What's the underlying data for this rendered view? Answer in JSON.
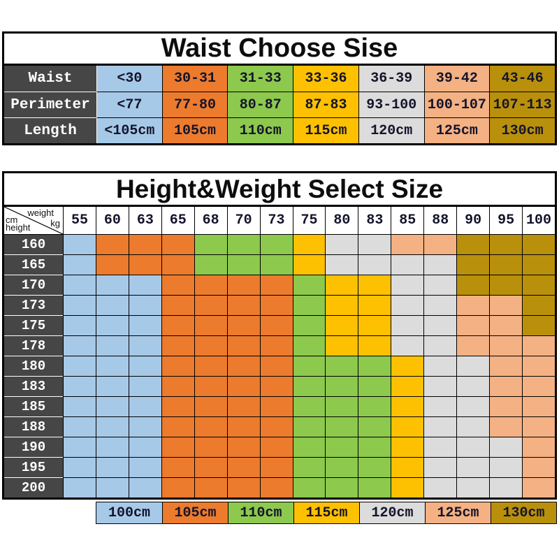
{
  "colors": {
    "blue": "#A7C9E8",
    "orange": "#EC7B2E",
    "green": "#8DC94D",
    "yellow": "#FDC101",
    "gray": "#DCDCDC",
    "peach": "#F4B183",
    "olive": "#B9900B",
    "header_dark": "#464646",
    "border": "#000000"
  },
  "size_color_map": {
    "100cm": "blue",
    "105cm": "orange",
    "110cm": "green",
    "115cm": "yellow",
    "120cm": "gray",
    "125cm": "peach",
    "130cm": "olive"
  },
  "waist_table": {
    "title": "Waist Choose Sise"
  },
  "size_matrix": {
    "title": "Height&Weight Select Size",
    "corner": {
      "cm": "cm",
      "weight": "weight",
      "height": "height",
      "kg": "kg"
    }
  },
  "legend": {
    "items": [
      "100cm",
      "105cm",
      "110cm",
      "115cm",
      "120cm",
      "125cm",
      "130cm"
    ]
  },
  "chart_data": [
    {
      "type": "table",
      "title": "Waist Choose Sise",
      "row_labels": [
        "Waist",
        "Perimeter",
        "Length"
      ],
      "rows": [
        [
          "<30",
          "30-31",
          "31-33",
          "33-36",
          "36-39",
          "39-42",
          "43-46"
        ],
        [
          "<77",
          "77-80",
          "80-87",
          "87-83",
          "93-100",
          "100-107",
          "107-113"
        ],
        [
          "<105cm",
          "105cm",
          "110cm",
          "115cm",
          "120cm",
          "125cm",
          "130cm"
        ]
      ],
      "column_sizes": [
        "100cm",
        "105cm",
        "110cm",
        "115cm",
        "120cm",
        "125cm",
        "130cm"
      ]
    },
    {
      "type": "heatmap",
      "title": "Height&Weight Select Size",
      "xlabel": "weight kg",
      "ylabel": "height cm",
      "x": [
        55,
        60,
        63,
        65,
        68,
        70,
        73,
        75,
        80,
        83,
        85,
        88,
        90,
        95,
        100
      ],
      "y": [
        160,
        165,
        170,
        173,
        175,
        178,
        180,
        183,
        185,
        188,
        190,
        195,
        200
      ],
      "legend_position": "bottom",
      "values": [
        [
          "100cm",
          "105cm",
          "105cm",
          "105cm",
          "110cm",
          "110cm",
          "110cm",
          "115cm",
          "120cm",
          "120cm",
          "125cm",
          "125cm",
          "130cm",
          "130cm",
          "130cm"
        ],
        [
          "100cm",
          "105cm",
          "105cm",
          "105cm",
          "110cm",
          "110cm",
          "110cm",
          "115cm",
          "120cm",
          "120cm",
          "120cm",
          "120cm",
          "130cm",
          "130cm",
          "130cm"
        ],
        [
          "100cm",
          "100cm",
          "100cm",
          "105cm",
          "105cm",
          "105cm",
          "105cm",
          "110cm",
          "115cm",
          "115cm",
          "120cm",
          "120cm",
          "130cm",
          "130cm",
          "130cm"
        ],
        [
          "100cm",
          "100cm",
          "100cm",
          "105cm",
          "105cm",
          "105cm",
          "105cm",
          "110cm",
          "115cm",
          "115cm",
          "120cm",
          "120cm",
          "125cm",
          "125cm",
          "130cm"
        ],
        [
          "100cm",
          "100cm",
          "100cm",
          "105cm",
          "105cm",
          "105cm",
          "105cm",
          "110cm",
          "115cm",
          "115cm",
          "120cm",
          "120cm",
          "125cm",
          "125cm",
          "130cm"
        ],
        [
          "100cm",
          "100cm",
          "100cm",
          "105cm",
          "105cm",
          "105cm",
          "105cm",
          "110cm",
          "115cm",
          "115cm",
          "120cm",
          "120cm",
          "125cm",
          "125cm",
          "125cm"
        ],
        [
          "100cm",
          "100cm",
          "100cm",
          "105cm",
          "105cm",
          "105cm",
          "105cm",
          "110cm",
          "110cm",
          "110cm",
          "115cm",
          "120cm",
          "120cm",
          "125cm",
          "125cm"
        ],
        [
          "100cm",
          "100cm",
          "100cm",
          "105cm",
          "105cm",
          "105cm",
          "105cm",
          "110cm",
          "110cm",
          "110cm",
          "115cm",
          "120cm",
          "120cm",
          "125cm",
          "125cm"
        ],
        [
          "100cm",
          "100cm",
          "100cm",
          "105cm",
          "105cm",
          "105cm",
          "105cm",
          "110cm",
          "110cm",
          "110cm",
          "115cm",
          "120cm",
          "120cm",
          "125cm",
          "125cm"
        ],
        [
          "100cm",
          "100cm",
          "100cm",
          "105cm",
          "105cm",
          "105cm",
          "105cm",
          "110cm",
          "110cm",
          "110cm",
          "115cm",
          "120cm",
          "120cm",
          "125cm",
          "125cm"
        ],
        [
          "100cm",
          "100cm",
          "100cm",
          "105cm",
          "105cm",
          "105cm",
          "105cm",
          "110cm",
          "110cm",
          "110cm",
          "115cm",
          "120cm",
          "120cm",
          "120cm",
          "125cm"
        ],
        [
          "100cm",
          "100cm",
          "100cm",
          "105cm",
          "105cm",
          "105cm",
          "105cm",
          "110cm",
          "110cm",
          "110cm",
          "115cm",
          "120cm",
          "120cm",
          "120cm",
          "125cm"
        ],
        [
          "100cm",
          "100cm",
          "100cm",
          "105cm",
          "105cm",
          "105cm",
          "105cm",
          "110cm",
          "110cm",
          "110cm",
          "115cm",
          "120cm",
          "120cm",
          "120cm",
          "125cm"
        ]
      ]
    }
  ]
}
